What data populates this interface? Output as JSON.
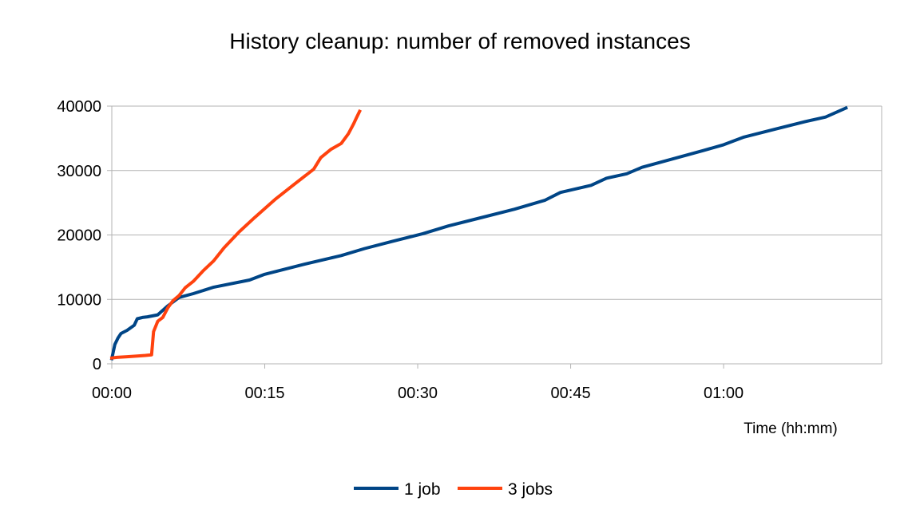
{
  "chart_data": {
    "type": "line",
    "title": "History cleanup: number of removed instances",
    "xlabel": "Time (hh:mm)",
    "ylabel": "",
    "x_unit": "minutes",
    "xlim": [
      0,
      75.5
    ],
    "ylim": [
      0,
      40000
    ],
    "x_ticks": [
      0,
      15,
      30,
      45,
      60
    ],
    "x_tick_labels": [
      "00:00",
      "00:15",
      "00:30",
      "00:45",
      "01:00"
    ],
    "y_ticks": [
      0,
      10000,
      20000,
      30000,
      40000
    ],
    "y_tick_labels": [
      "0",
      "10000",
      "20000",
      "30000",
      "40000"
    ],
    "grid": "horizontal",
    "legend_position": "bottom",
    "series": [
      {
        "name": "1 job",
        "color": "#004586",
        "x": [
          0,
          0.3,
          0.6,
          0.9,
          1.5,
          2.2,
          2.5,
          3.0,
          3.5,
          4.5,
          5.5,
          6.6,
          8,
          10,
          13.5,
          15,
          19,
          22.5,
          24.8,
          27.5,
          30.5,
          33,
          36,
          39.5,
          42.5,
          44,
          47,
          48.5,
          50.5,
          52,
          55,
          58,
          60,
          62,
          65,
          68,
          70,
          72
        ],
        "y": [
          800,
          3000,
          4000,
          4700,
          5200,
          6000,
          7000,
          7200,
          7300,
          7600,
          9000,
          10300,
          10900,
          11900,
          13000,
          13900,
          15500,
          16800,
          17900,
          19000,
          20200,
          21400,
          22600,
          24000,
          25400,
          26600,
          27700,
          28800,
          29500,
          30500,
          31800,
          33100,
          34000,
          35200,
          36400,
          37600,
          38300,
          39700
        ]
      },
      {
        "name": "3 jobs",
        "color": "#ff420e",
        "x": [
          0,
          0.5,
          1.5,
          2.5,
          3.3,
          3.9,
          4.1,
          4.5,
          5.0,
          5.5,
          6.0,
          6.6,
          7.2,
          8.0,
          9.0,
          10.0,
          11.0,
          12.5,
          14.0,
          16.0,
          18.0,
          19.8,
          20.5,
          21.5,
          22.5,
          23.2,
          23.7,
          24.0,
          24.3
        ],
        "y": [
          900,
          1000,
          1100,
          1200,
          1300,
          1400,
          5000,
          6600,
          7200,
          8700,
          9800,
          10600,
          11800,
          12800,
          14500,
          16000,
          18000,
          20500,
          22700,
          25500,
          28000,
          30200,
          32000,
          33300,
          34200,
          35700,
          37200,
          38200,
          39200
        ]
      }
    ]
  }
}
